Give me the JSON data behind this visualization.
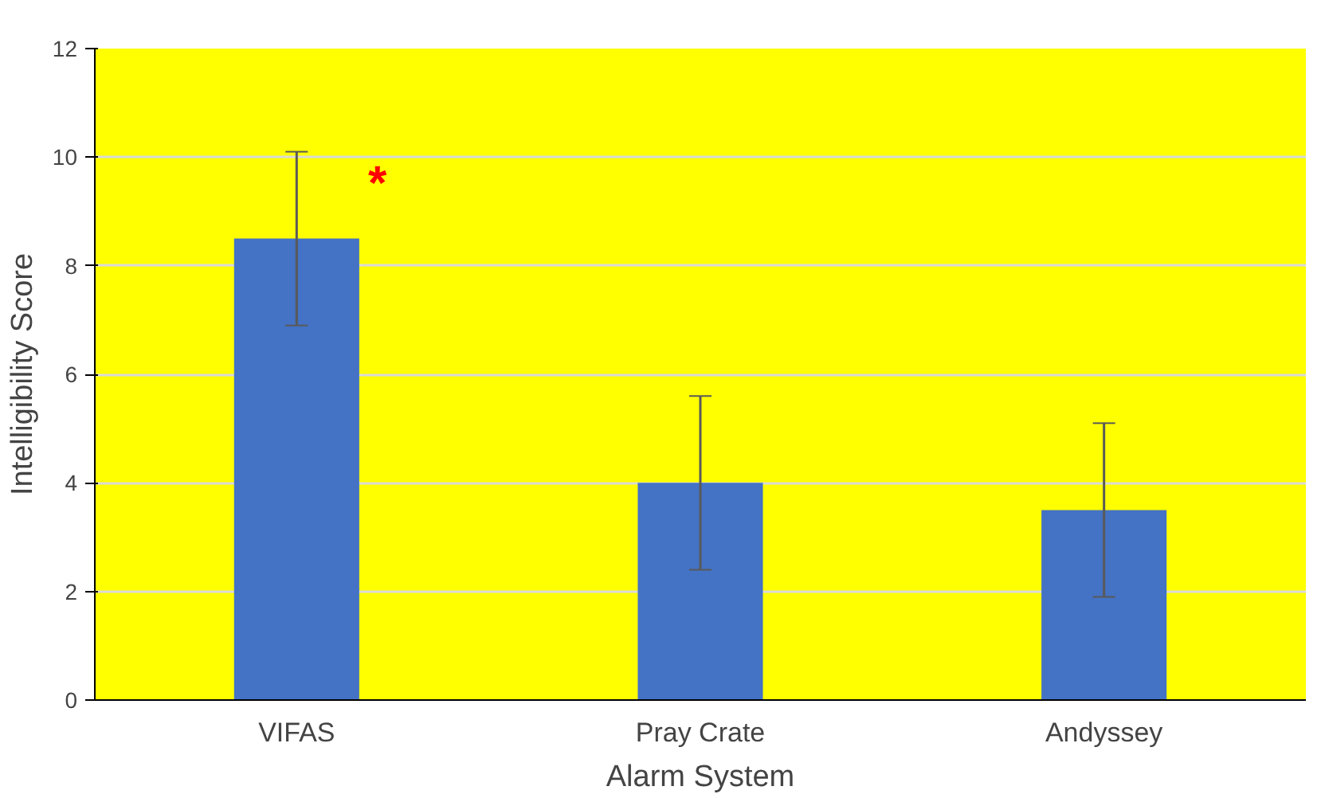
{
  "chart_data": {
    "type": "bar",
    "xlabel": "Alarm System",
    "ylabel": "Intelligibility Score",
    "categories": [
      "VIFAS",
      "Pray Crate",
      "Andyssey"
    ],
    "values": [
      8.5,
      4.0,
      3.5
    ],
    "errors": [
      1.6,
      1.6,
      1.6
    ],
    "color": "#4472c4",
    "ylim": [
      0,
      12
    ],
    "yticks": [
      0,
      2,
      4,
      6,
      8,
      10,
      12
    ],
    "grid": "y",
    "annotations": [
      {
        "text": "*",
        "x": "VIFAS",
        "y": 9.5
      }
    ]
  }
}
